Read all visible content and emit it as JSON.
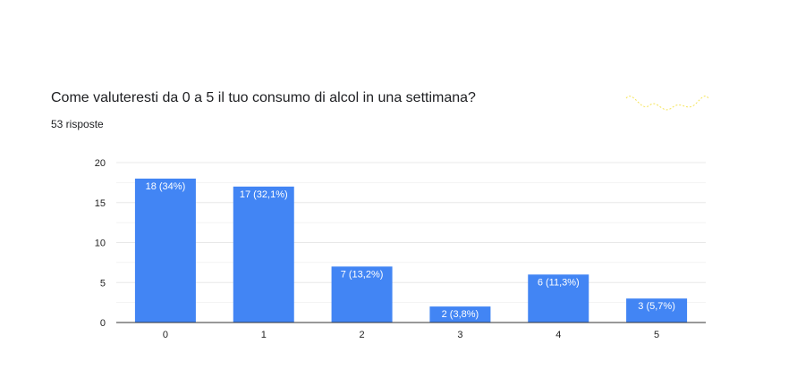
{
  "question": {
    "title": "Come valuteresti da 0 a 5 il tuo consumo di alcol in una settimana?",
    "responses": "53 risposte"
  },
  "colors": {
    "bar": "#4285f4",
    "grid": "#e8e8e8",
    "axis": "#333333",
    "text": "#202124",
    "squiggle": "#f5e55a"
  },
  "chart_data": {
    "type": "bar",
    "title": "",
    "xlabel": "",
    "ylabel": "",
    "categories": [
      "0",
      "1",
      "2",
      "3",
      "4",
      "5"
    ],
    "values": [
      18,
      17,
      7,
      2,
      6,
      3
    ],
    "data_labels": [
      "18 (34%)",
      "17 (32,1%)",
      "7 (13,2%)",
      "2 (3,8%)",
      "6 (11,3%)",
      "3 (5,7%)"
    ],
    "ylim": [
      0,
      20
    ],
    "yticks": [
      0,
      5,
      10,
      15,
      20
    ],
    "grid": true,
    "legend": "none"
  }
}
